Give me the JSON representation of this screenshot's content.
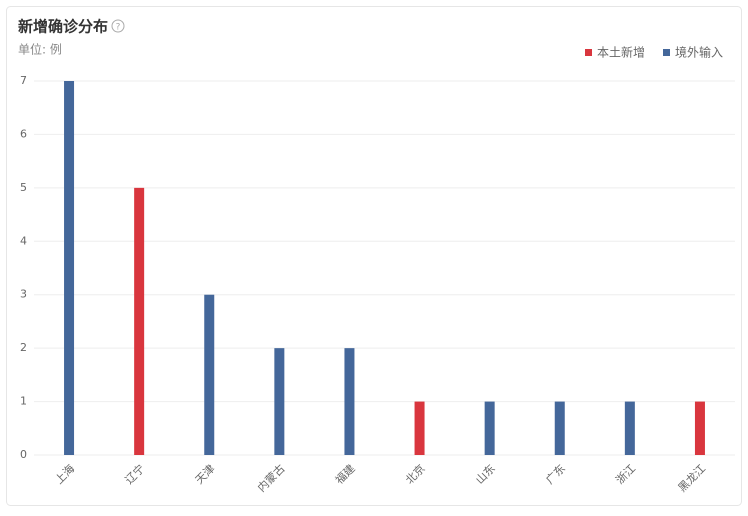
{
  "chart_data": {
    "type": "bar",
    "title": "新增确诊分布",
    "subtitle": "单位: 例",
    "categories": [
      "上海",
      "辽宁",
      "天津",
      "内蒙古",
      "福建",
      "北京",
      "山东",
      "广东",
      "浙江",
      "黑龙江"
    ],
    "series": [
      {
        "name": "本土新增",
        "color": "#d9363e",
        "values": [
          null,
          5,
          null,
          null,
          null,
          1,
          null,
          null,
          null,
          1
        ]
      },
      {
        "name": "境外输入",
        "color": "#44679a",
        "values": [
          7,
          null,
          3,
          2,
          2,
          null,
          1,
          1,
          1,
          null
        ]
      }
    ],
    "ylim": [
      0,
      7
    ],
    "yticks": [
      0,
      1,
      2,
      3,
      4,
      5,
      6,
      7
    ],
    "grid": true,
    "legend": "top-right"
  }
}
